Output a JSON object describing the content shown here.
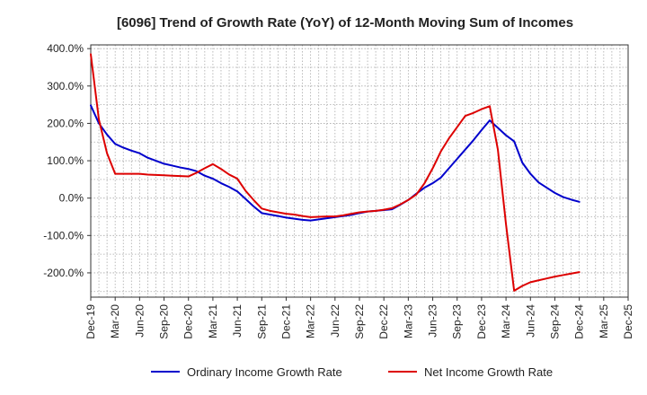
{
  "chart_data": {
    "type": "line",
    "title": "[6096]  Trend of Growth Rate (YoY) of 12-Month Moving Sum of Incomes",
    "xlabel": "",
    "ylabel": "",
    "ylim": [
      -265,
      410
    ],
    "y_ticks": [
      400,
      300,
      200,
      100,
      0,
      -100,
      -200
    ],
    "y_tick_labels": [
      "400.0%",
      "300.0%",
      "200.0%",
      "100.0%",
      "0.0%",
      "-100.0%",
      "-200.0%"
    ],
    "x_tick_labels": [
      "Dec-19",
      "Mar-20",
      "Jun-20",
      "Sep-20",
      "Dec-20",
      "Mar-21",
      "Jun-21",
      "Sep-21",
      "Dec-21",
      "Mar-22",
      "Jun-22",
      "Sep-22",
      "Dec-22",
      "Mar-23",
      "Jun-23",
      "Sep-23",
      "Dec-23",
      "Mar-24",
      "Jun-24",
      "Sep-24",
      "Dec-24",
      "Mar-25",
      "Dec-25"
    ],
    "x_range_months": [
      0,
      66
    ],
    "grid": true,
    "legend_position": "bottom",
    "colors": {
      "ordinary": "#0000cc",
      "net": "#dd0000",
      "grid": "#aaaaaa",
      "axis": "#333333"
    },
    "series": [
      {
        "name": "Ordinary Income Growth Rate",
        "color": "#0000cc",
        "x": [
          0,
          1,
          2,
          3,
          4,
          5,
          6,
          7,
          8,
          9,
          10,
          11,
          12,
          13,
          14,
          15,
          16,
          17,
          18,
          19,
          20,
          21,
          22,
          23,
          24,
          25,
          26,
          27,
          28,
          29,
          30,
          31,
          32,
          33,
          34,
          35,
          36,
          37,
          38,
          39,
          40,
          41,
          42,
          43,
          44,
          45,
          46,
          47,
          48,
          49,
          50,
          51,
          52,
          53,
          54,
          55,
          56,
          57,
          58,
          59,
          60
        ],
        "values": [
          248,
          200,
          170,
          145,
          135,
          127,
          120,
          108,
          100,
          92,
          87,
          82,
          78,
          72,
          60,
          52,
          40,
          30,
          18,
          -2,
          -22,
          -40,
          -44,
          -48,
          -52,
          -55,
          -58,
          -60,
          -57,
          -54,
          -51,
          -48,
          -45,
          -40,
          -36,
          -34,
          -32,
          -30,
          -18,
          -5,
          12,
          28,
          40,
          55,
          80,
          105,
          130,
          155,
          182,
          208,
          188,
          168,
          152,
          95,
          65,
          42,
          28,
          14,
          3,
          -4,
          -10
        ]
      },
      {
        "name": "Net Income Growth Rate",
        "color": "#dd0000",
        "x": [
          0,
          1,
          2,
          3,
          4,
          5,
          6,
          7,
          8,
          9,
          10,
          11,
          12,
          13,
          14,
          15,
          16,
          17,
          18,
          19,
          20,
          21,
          22,
          23,
          24,
          25,
          26,
          27,
          28,
          29,
          30,
          31,
          32,
          33,
          34,
          35,
          36,
          37,
          38,
          39,
          40,
          41,
          42,
          43,
          44,
          45,
          46,
          47,
          48,
          49,
          50,
          51,
          52,
          53,
          54,
          55,
          56,
          57,
          58,
          59,
          60
        ],
        "values": [
          385,
          210,
          120,
          65,
          65,
          65,
          65,
          63,
          62,
          61,
          60,
          59,
          58,
          68,
          80,
          91,
          78,
          63,
          52,
          20,
          -5,
          -28,
          -34,
          -38,
          -42,
          -44,
          -48,
          -51,
          -50,
          -49,
          -49,
          -46,
          -42,
          -38,
          -36,
          -34,
          -31,
          -27,
          -17,
          -5,
          10,
          40,
          80,
          125,
          160,
          190,
          220,
          228,
          238,
          246,
          130,
          -70,
          -248,
          -235,
          -225,
          -220,
          -215,
          -210,
          -206,
          -202,
          -198
        ]
      }
    ]
  }
}
